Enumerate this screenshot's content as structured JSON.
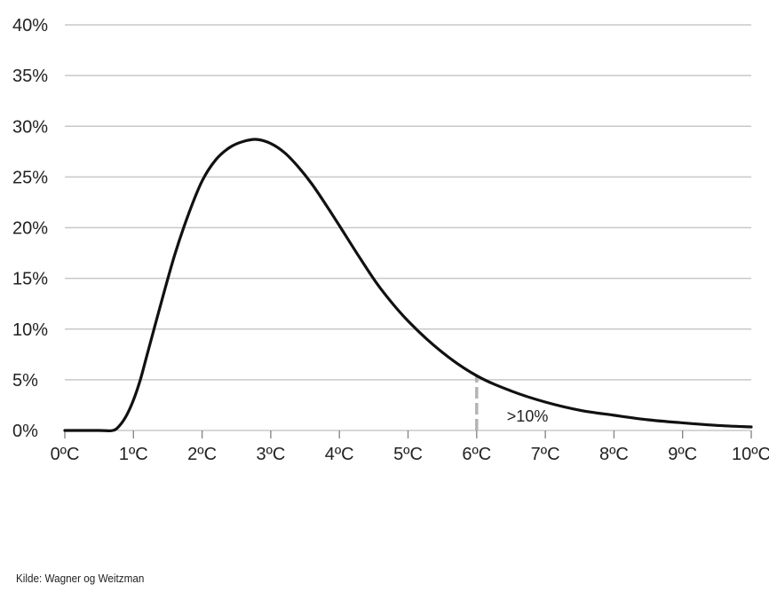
{
  "chart_data": {
    "type": "line",
    "title": "",
    "xlabel": "",
    "ylabel": "",
    "xlim": [
      0,
      10
    ],
    "ylim": [
      0,
      40
    ],
    "x_ticks": [
      "0ºC",
      "1ºC",
      "2ºC",
      "3ºC",
      "4ºC",
      "5ºC",
      "6ºC",
      "7ºC",
      "8ºC",
      "9ºC",
      "10ºC"
    ],
    "y_ticks": [
      "0%",
      "5%",
      "10%",
      "15%",
      "20%",
      "25%",
      "30%",
      "35%",
      "40%"
    ],
    "grid": true,
    "series": [
      {
        "x": [
          0,
          0.5,
          0.7,
          0.8,
          0.9,
          1.0,
          1.1,
          1.2,
          1.4,
          1.6,
          1.8,
          2.0,
          2.2,
          2.4,
          2.6,
          2.8,
          3.0,
          3.2,
          3.4,
          3.6,
          3.8,
          4.0,
          4.3,
          4.6,
          5.0,
          5.5,
          6.0,
          6.5,
          7.0,
          7.5,
          8.0,
          8.5,
          9.0,
          9.5,
          10.0
        ],
        "y": [
          0,
          0,
          0,
          0.5,
          1.5,
          3.0,
          5.0,
          7.5,
          12.5,
          17.3,
          21.3,
          24.6,
          26.7,
          27.9,
          28.5,
          28.7,
          28.3,
          27.4,
          26.0,
          24.3,
          22.3,
          20.2,
          17.0,
          14.0,
          10.8,
          7.7,
          5.4,
          3.9,
          2.8,
          2.0,
          1.5,
          1.05,
          0.75,
          0.5,
          0.35
        ]
      }
    ],
    "marker_x": 6,
    "annotation": ">10%",
    "colors": {
      "line": "#111111",
      "grid": "#c8c8c8",
      "marker": "#b4b4b4",
      "text": "#222222"
    }
  },
  "source": "Kilde: Wagner og Weitzman"
}
